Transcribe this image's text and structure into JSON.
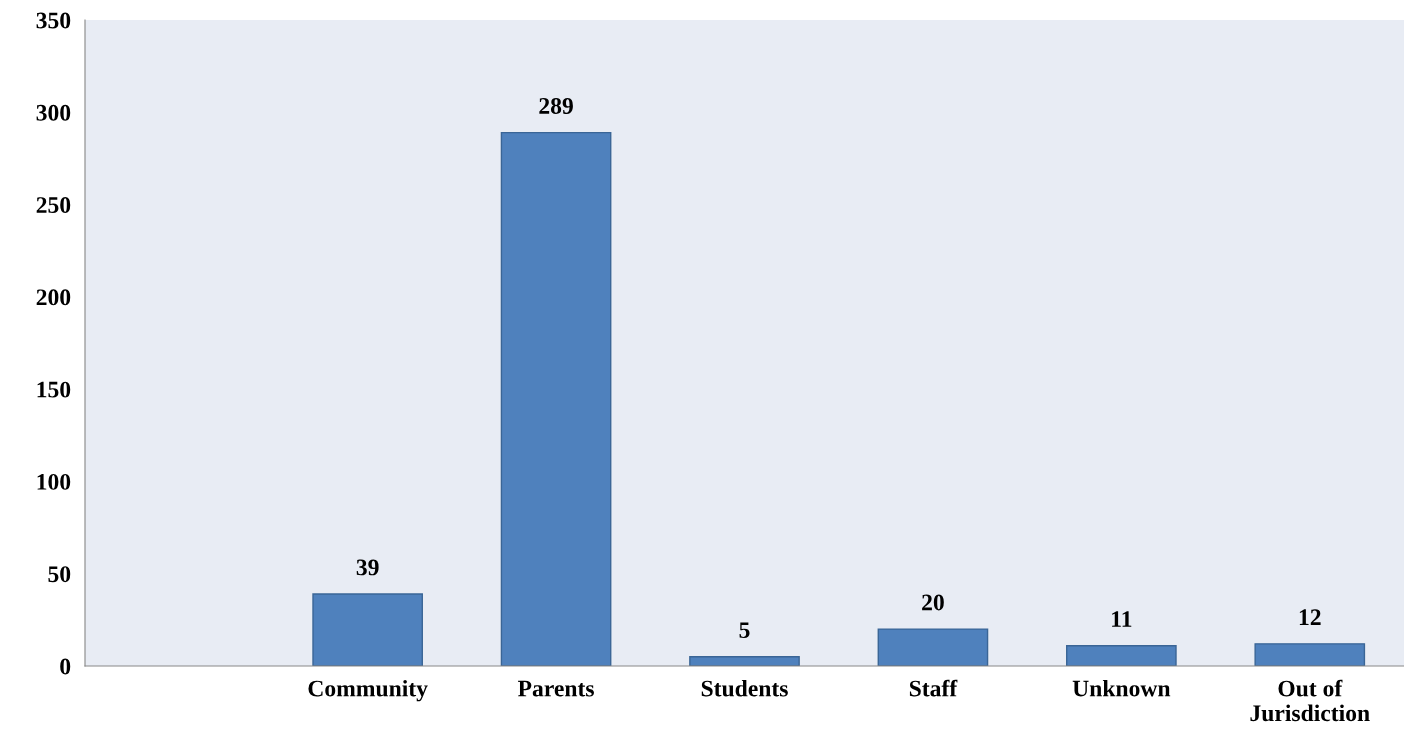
{
  "chart_data": {
    "type": "bar",
    "categories": [
      null,
      "Community",
      "Parents",
      "Students",
      "Staff",
      "Unknown",
      "Out of\nJurisdiction"
    ],
    "values": [
      null,
      39,
      289,
      5,
      20,
      11,
      12
    ],
    "color": "#4f81bd",
    "ylim": [
      0,
      350
    ],
    "yticks": [
      0,
      50,
      100,
      150,
      200,
      250,
      300,
      350
    ],
    "data_labels": true,
    "grid": false,
    "legend": false
  }
}
